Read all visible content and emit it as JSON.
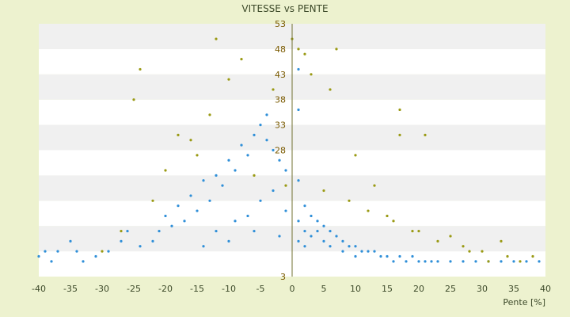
{
  "chart_data": {
    "type": "scatter",
    "title": "VITESSE vs PENTE",
    "xlabel": "Pente [%]",
    "ylabel": "",
    "xlim": [
      -40,
      40
    ],
    "ylim": [
      3,
      53
    ],
    "x_ticks": [
      -40,
      -35,
      -30,
      -25,
      -20,
      -15,
      -10,
      -5,
      0,
      5,
      10,
      15,
      20,
      25,
      30,
      35,
      40
    ],
    "y_ticks": [
      3,
      8,
      13,
      18,
      23,
      28,
      33,
      38,
      43,
      48,
      53
    ],
    "y_tick_labels": [
      "3",
      "",
      "",
      "",
      "",
      "28",
      "33",
      "38",
      "43",
      "48",
      "53"
    ],
    "grid": "horizontal bands",
    "legend": "none",
    "colors": {
      "background": "#edf2cf",
      "plot_band_light": "#ffffff",
      "plot_band_dark": "#f0f0f0",
      "series_blue": "#2f8fd8",
      "series_olive": "#9a9a14",
      "zero_line": "#707030"
    },
    "series": [
      {
        "color": "#2f8fd8",
        "values": [
          [
            -40,
            7
          ],
          [
            -39,
            8
          ],
          [
            -38,
            6
          ],
          [
            -37,
            8
          ],
          [
            -35,
            10
          ],
          [
            -34,
            8
          ],
          [
            -33,
            6
          ],
          [
            -31,
            7
          ],
          [
            -29,
            8
          ],
          [
            -27,
            10
          ],
          [
            -26,
            12
          ],
          [
            -24,
            9
          ],
          [
            -22,
            10
          ],
          [
            -21,
            12
          ],
          [
            -20,
            15
          ],
          [
            -19,
            13
          ],
          [
            -18,
            17
          ],
          [
            -17,
            14
          ],
          [
            -16,
            19
          ],
          [
            -15,
            16
          ],
          [
            -14,
            22
          ],
          [
            -13,
            18
          ],
          [
            -12,
            23
          ],
          [
            -11,
            21
          ],
          [
            -10,
            26
          ],
          [
            -9,
            24
          ],
          [
            -8,
            29
          ],
          [
            -7,
            27
          ],
          [
            -6,
            31
          ],
          [
            -5,
            33
          ],
          [
            -4,
            35
          ],
          [
            -4,
            30
          ],
          [
            -3,
            28
          ],
          [
            -2,
            26
          ],
          [
            -1,
            24
          ],
          [
            -12,
            12
          ],
          [
            -9,
            14
          ],
          [
            -7,
            15
          ],
          [
            -5,
            18
          ],
          [
            -3,
            20
          ],
          [
            -1,
            16
          ],
          [
            -14,
            9
          ],
          [
            -10,
            10
          ],
          [
            -6,
            12
          ],
          [
            -2,
            11
          ],
          [
            1,
            44
          ],
          [
            1,
            36
          ],
          [
            1,
            22
          ],
          [
            1,
            14
          ],
          [
            1,
            10
          ],
          [
            2,
            17
          ],
          [
            2,
            12
          ],
          [
            2,
            9
          ],
          [
            3,
            15
          ],
          [
            3,
            11
          ],
          [
            4,
            14
          ],
          [
            4,
            12
          ],
          [
            5,
            13
          ],
          [
            5,
            10
          ],
          [
            6,
            12
          ],
          [
            6,
            9
          ],
          [
            7,
            11
          ],
          [
            8,
            10
          ],
          [
            8,
            8
          ],
          [
            9,
            9
          ],
          [
            10,
            9
          ],
          [
            10,
            7
          ],
          [
            11,
            8
          ],
          [
            12,
            8
          ],
          [
            13,
            8
          ],
          [
            14,
            7
          ],
          [
            15,
            7
          ],
          [
            16,
            6
          ],
          [
            17,
            7
          ],
          [
            18,
            6
          ],
          [
            19,
            7
          ],
          [
            20,
            6
          ],
          [
            21,
            6
          ],
          [
            22,
            6
          ],
          [
            23,
            6
          ],
          [
            25,
            6
          ],
          [
            27,
            6
          ],
          [
            29,
            6
          ],
          [
            31,
            6
          ],
          [
            33,
            6
          ],
          [
            35,
            6
          ],
          [
            37,
            6
          ],
          [
            39,
            6
          ]
        ]
      },
      {
        "color": "#9a9a14",
        "values": [
          [
            -24,
            44
          ],
          [
            -25,
            38
          ],
          [
            -18,
            31
          ],
          [
            -16,
            30
          ],
          [
            -13,
            35
          ],
          [
            -12,
            50
          ],
          [
            -8,
            46
          ],
          [
            -10,
            42
          ],
          [
            -20,
            24
          ],
          [
            -22,
            18
          ],
          [
            -27,
            12
          ],
          [
            -30,
            8
          ],
          [
            -15,
            27
          ],
          [
            -6,
            23
          ],
          [
            -3,
            40
          ],
          [
            -1,
            21
          ],
          [
            0,
            50
          ],
          [
            1,
            48
          ],
          [
            2,
            47
          ],
          [
            3,
            43
          ],
          [
            6,
            40
          ],
          [
            7,
            48
          ],
          [
            10,
            27
          ],
          [
            13,
            21
          ],
          [
            17,
            36
          ],
          [
            17,
            31
          ],
          [
            21,
            31
          ],
          [
            15,
            15
          ],
          [
            20,
            12
          ],
          [
            25,
            11
          ],
          [
            27,
            9
          ],
          [
            30,
            8
          ],
          [
            33,
            10
          ],
          [
            34,
            7
          ],
          [
            38,
            7
          ],
          [
            5,
            20
          ],
          [
            9,
            18
          ],
          [
            12,
            16
          ],
          [
            16,
            14
          ],
          [
            19,
            12
          ],
          [
            23,
            10
          ],
          [
            28,
            8
          ],
          [
            31,
            6
          ],
          [
            36,
            6
          ]
        ]
      }
    ]
  }
}
